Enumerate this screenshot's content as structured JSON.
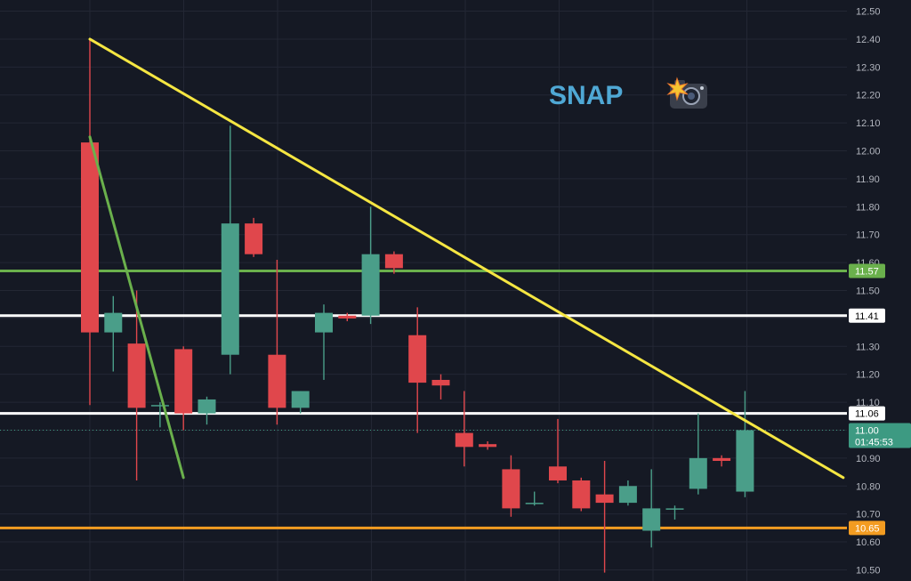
{
  "chart_data": {
    "type": "candlestick",
    "title": "SNAP",
    "title_icon": "camera-with-flash-icon",
    "ylim": [
      10.46,
      12.54
    ],
    "y_ticks": [
      10.5,
      10.6,
      10.7,
      10.8,
      10.9,
      11.0,
      11.1,
      11.2,
      11.3,
      11.4,
      11.5,
      11.6,
      11.7,
      11.8,
      11.9,
      12.0,
      12.1,
      12.2,
      12.3,
      12.4,
      12.5
    ],
    "y_tick_labels": [
      "10.50",
      "10.60",
      "10.70",
      "10.80",
      "10.90",
      "11.00",
      "11.10",
      "11.20",
      "11.30",
      "11.40",
      "11.50",
      "11.60",
      "11.70",
      "11.80",
      "11.90",
      "12.00",
      "12.10",
      "12.20",
      "12.30",
      "12.40",
      "12.50"
    ],
    "grid": true,
    "candles": [
      {
        "o": 12.03,
        "h": 12.4,
        "l": 11.09,
        "c": 11.35
      },
      {
        "o": 11.35,
        "h": 11.48,
        "l": 11.21,
        "c": 11.42
      },
      {
        "o": 11.31,
        "h": 11.5,
        "l": 10.82,
        "c": 11.08
      },
      {
        "o": 11.09,
        "h": 11.1,
        "l": 11.01,
        "c": 11.09
      },
      {
        "o": 11.29,
        "h": 11.3,
        "l": 11.0,
        "c": 11.06
      },
      {
        "o": 11.06,
        "h": 11.12,
        "l": 11.02,
        "c": 11.11
      },
      {
        "o": 11.27,
        "h": 12.09,
        "l": 11.2,
        "c": 11.74
      },
      {
        "o": 11.74,
        "h": 11.76,
        "l": 11.62,
        "c": 11.63
      },
      {
        "o": 11.27,
        "h": 11.61,
        "l": 11.02,
        "c": 11.08
      },
      {
        "o": 11.08,
        "h": 11.14,
        "l": 11.06,
        "c": 11.14
      },
      {
        "o": 11.35,
        "h": 11.45,
        "l": 11.18,
        "c": 11.42
      },
      {
        "o": 11.41,
        "h": 11.42,
        "l": 11.39,
        "c": 11.4
      },
      {
        "o": 11.41,
        "h": 11.8,
        "l": 11.38,
        "c": 11.63
      },
      {
        "o": 11.63,
        "h": 11.64,
        "l": 11.56,
        "c": 11.58
      },
      {
        "o": 11.34,
        "h": 11.44,
        "l": 10.99,
        "c": 11.17
      },
      {
        "o": 11.18,
        "h": 11.2,
        "l": 11.11,
        "c": 11.16
      },
      {
        "o": 10.99,
        "h": 11.14,
        "l": 10.87,
        "c": 10.94
      },
      {
        "o": 10.95,
        "h": 10.96,
        "l": 10.93,
        "c": 10.94
      },
      {
        "o": 10.86,
        "h": 10.91,
        "l": 10.69,
        "c": 10.72
      },
      {
        "o": 10.74,
        "h": 10.78,
        "l": 10.73,
        "c": 10.74
      },
      {
        "o": 10.87,
        "h": 11.04,
        "l": 10.81,
        "c": 10.82
      },
      {
        "o": 10.82,
        "h": 10.83,
        "l": 10.71,
        "c": 10.72
      },
      {
        "o": 10.77,
        "h": 10.89,
        "l": 10.49,
        "c": 10.74
      },
      {
        "o": 10.74,
        "h": 10.82,
        "l": 10.73,
        "c": 10.8
      },
      {
        "o": 10.64,
        "h": 10.86,
        "l": 10.58,
        "c": 10.72
      },
      {
        "o": 10.72,
        "h": 10.73,
        "l": 10.68,
        "c": 10.72
      },
      {
        "o": 10.79,
        "h": 11.06,
        "l": 10.77,
        "c": 10.9
      },
      {
        "o": 10.9,
        "h": 10.91,
        "l": 10.87,
        "c": 10.89
      },
      {
        "o": 10.78,
        "h": 11.14,
        "l": 10.76,
        "c": 11.0
      }
    ],
    "horizontal_levels": [
      {
        "value": 11.57,
        "label": "11.57",
        "color": "#6ab04c"
      },
      {
        "value": 11.41,
        "label": "11.41",
        "color": "#ffffff"
      },
      {
        "value": 11.06,
        "label": "11.06",
        "color": "#ffffff"
      },
      {
        "value": 10.65,
        "label": "10.65",
        "color": "#f39c21"
      }
    ],
    "trendlines": [
      {
        "color": "#f5e642",
        "start": {
          "candle": 0,
          "value": 12.4
        },
        "end": {
          "candle": 32.2,
          "value": 10.83
        }
      },
      {
        "color": "#6ab04c",
        "start": {
          "candle": 0,
          "value": 12.05
        },
        "end": {
          "candle": 4,
          "value": 10.83
        }
      }
    ],
    "last_price": {
      "value": 11.0,
      "label": "11.00",
      "countdown": "01:45:53",
      "color": "#3d9a82"
    },
    "colors": {
      "up": "#4a9e89",
      "down": "#e0474c",
      "grid": "#232734",
      "background": "#151924"
    }
  }
}
